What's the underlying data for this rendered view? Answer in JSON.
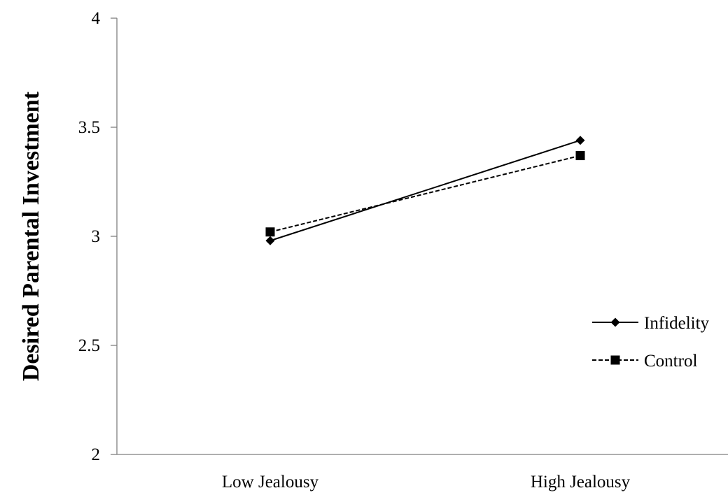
{
  "chart_data": {
    "type": "line",
    "title": "",
    "xlabel": "",
    "ylabel": "Desired Parental Investment",
    "categories": [
      "Low Jealousy",
      "High Jealousy"
    ],
    "ylim": [
      2,
      4
    ],
    "yticks": [
      "2",
      "2.5",
      "3",
      "3.5",
      "4"
    ],
    "grid": false,
    "legend_position": "right",
    "series": [
      {
        "name": "Infidelity",
        "values": [
          2.98,
          3.44
        ],
        "marker": "diamond",
        "line_style": "solid",
        "color": "#000000"
      },
      {
        "name": "Control",
        "values": [
          3.02,
          3.37
        ],
        "marker": "square",
        "line_style": "dashed",
        "color": "#000000"
      }
    ]
  }
}
